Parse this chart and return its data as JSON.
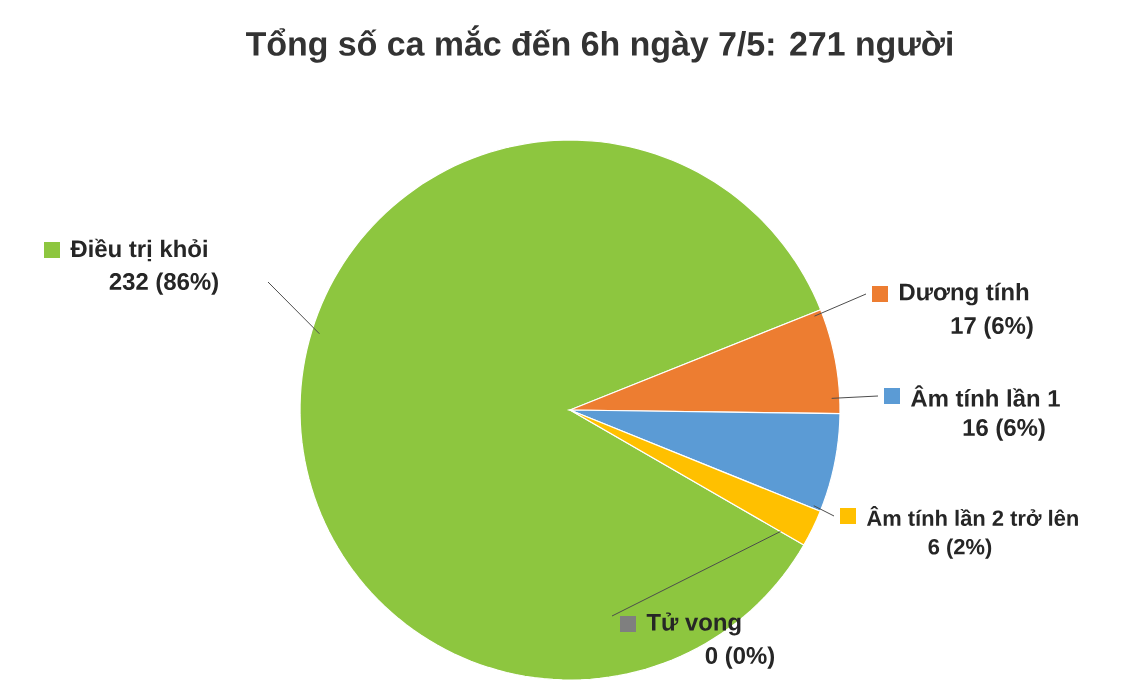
{
  "chart_data": {
    "type": "pie",
    "title": "Tổng số ca mắc đến 6h ngày 7/5: 271 người",
    "categories": [
      "Điều trị khỏi",
      "Dương tính",
      "Âm tính lần 1",
      "Âm tính lần 2 trở lên",
      "Tử vong"
    ],
    "values": [
      232,
      17,
      16,
      6,
      0
    ],
    "colors": [
      "#8dc63f",
      "#ed7d31",
      "#5b9bd5",
      "#ffc000",
      "#7f7f7f"
    ],
    "legend": "right",
    "value_labels": [
      "232 (86%)",
      "17 (6%)",
      "16 (6%)",
      "6 (2%)",
      "0 (0%)"
    ]
  }
}
